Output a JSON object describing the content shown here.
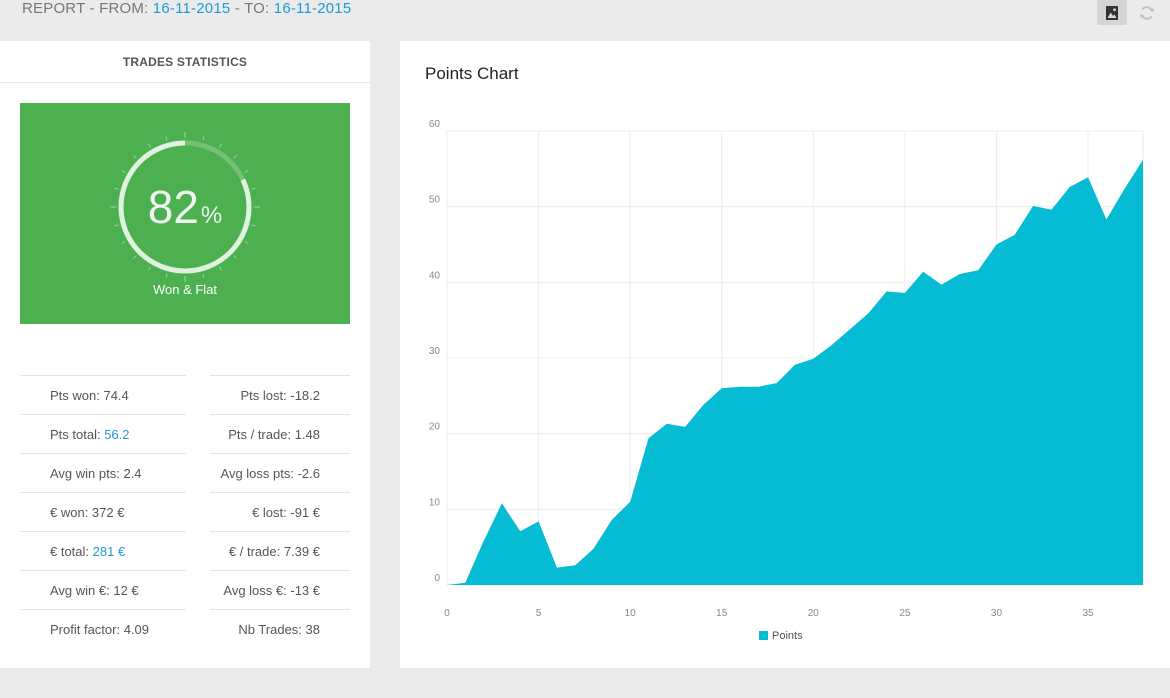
{
  "header": {
    "report_prefix": "REPORT - FROM: ",
    "from_date": "16-11-2015",
    "to_prefix": " - TO: ",
    "to_date": "16-11-2015",
    "image_icon": "image-icon",
    "refresh_icon": "refresh-icon"
  },
  "stats": {
    "title": "TRADES STATISTICS",
    "gauge": {
      "value": "82",
      "unit": "%",
      "label": "Won & Flat",
      "percent": 82
    },
    "rows": [
      {
        "left_label": "Pts won: ",
        "left_value": "74.4",
        "right_label": "Pts lost: ",
        "right_value": "-18.2"
      },
      {
        "left_label": "Pts total: ",
        "left_value": "56.2",
        "right_label": "Pts / trade: ",
        "right_value": "1.48"
      },
      {
        "left_label": "Avg win pts: ",
        "left_value": "2.4",
        "right_label": "Avg loss pts: ",
        "right_value": "-2.6"
      },
      {
        "left_label": "€ won: ",
        "left_value": "372 €",
        "right_label": "€ lost: ",
        "right_value": "-91 €"
      },
      {
        "left_label": "€ total: ",
        "left_value": "281 €",
        "right_label": "€ / trade: ",
        "right_value": "7.39 €"
      },
      {
        "left_label": "Avg win €: ",
        "left_value": "12 €",
        "right_label": "Avg loss €: ",
        "right_value": "-13 €"
      },
      {
        "left_label": "Profit factor: ",
        "left_value": "4.09",
        "right_label": "Nb Trades: ",
        "right_value": "38"
      }
    ],
    "accent": "#1e9ad6",
    "box_color": "#4caf50"
  },
  "chart_data": {
    "type": "area",
    "title": "Points Chart",
    "xlabel": "",
    "ylabel": "",
    "xlim": [
      0,
      38
    ],
    "ylim": [
      0,
      60
    ],
    "x_ticks": [
      0,
      5,
      10,
      15,
      20,
      25,
      30,
      35
    ],
    "y_ticks": [
      0,
      10,
      20,
      30,
      40,
      50,
      60
    ],
    "grid": true,
    "legend": "bottom-center",
    "color": "#06bcd4",
    "series": [
      {
        "name": "Points",
        "x": [
          0,
          1,
          2,
          3,
          4,
          5,
          6,
          7,
          8,
          9,
          10,
          11,
          12,
          13,
          14,
          15,
          16,
          17,
          18,
          19,
          20,
          21,
          22,
          23,
          24,
          25,
          26,
          27,
          28,
          29,
          30,
          31,
          32,
          33,
          34,
          35,
          36,
          37,
          38
        ],
        "values": [
          0,
          0.3,
          5.8,
          10.8,
          7.1,
          8.4,
          2.3,
          2.6,
          4.8,
          8.6,
          11.0,
          19.4,
          21.3,
          20.9,
          23.8,
          26.0,
          26.2,
          26.2,
          26.7,
          29.1,
          29.9,
          31.7,
          33.8,
          35.9,
          38.8,
          38.6,
          41.4,
          39.7,
          41.1,
          41.6,
          45.0,
          46.3,
          50.1,
          49.6,
          52.6,
          53.9,
          48.3,
          52.4,
          56.2
        ]
      }
    ]
  }
}
